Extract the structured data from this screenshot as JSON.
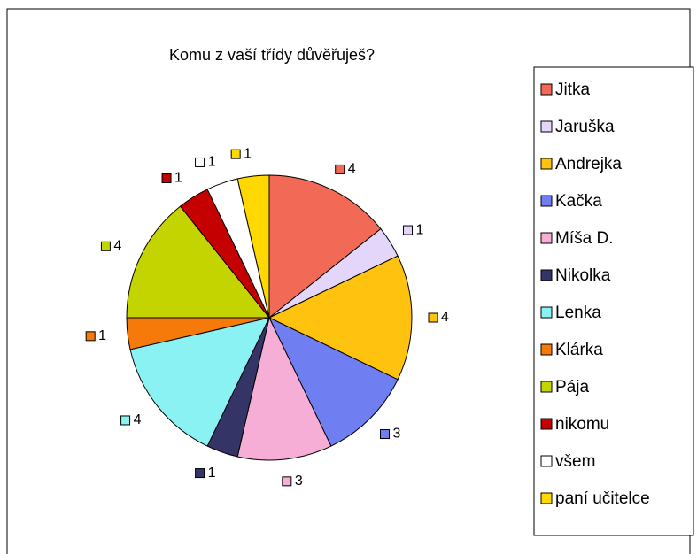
{
  "chart_data": {
    "type": "pie",
    "title": "Komu z vaší třídy důvěřuješ?",
    "categories": [
      "Jitka",
      "Jaruška",
      "Andrejka",
      "Kačka",
      "Míša D.",
      "Nikolka",
      "Lenka",
      "Klárka",
      "Pája",
      "nikomu",
      "všem",
      "paní učitelce"
    ],
    "values": [
      4,
      1,
      4,
      3,
      3,
      1,
      4,
      1,
      4,
      1,
      1,
      1
    ],
    "colors": [
      "#f26a55",
      "#e4d6fa",
      "#ffc20e",
      "#6f7ef0",
      "#f7aed6",
      "#343466",
      "#8af2f2",
      "#f57a0a",
      "#c4d400",
      "#c40000",
      "#ffffff",
      "#ffd800"
    ],
    "legend": "right"
  }
}
